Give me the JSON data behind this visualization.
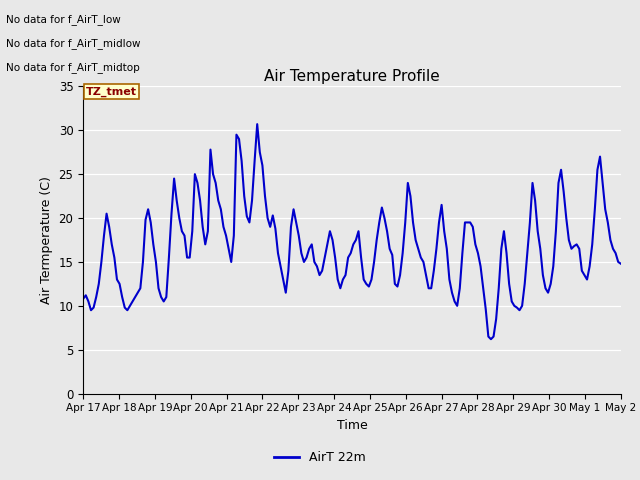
{
  "title": "Air Temperature Profile",
  "xlabel": "Time",
  "ylabel": "Air Termperature (C)",
  "line_color": "#0000cc",
  "line_width": 1.5,
  "ylim": [
    0,
    35
  ],
  "yticks": [
    0,
    5,
    10,
    15,
    20,
    25,
    30,
    35
  ],
  "background_color": "#e8e8e8",
  "plot_bg_color": "#e8e8e8",
  "legend_label": "AirT 22m",
  "annotations_text": [
    "No data for f_AirT_low",
    "No data for f_AirT_midlow",
    "No data for f_AirT_midtop"
  ],
  "tz_label": "TZ_tmet",
  "x_tick_labels": [
    "Apr 17",
    "Apr 18",
    "Apr 19",
    "Apr 20",
    "Apr 21",
    "Apr 22",
    "Apr 23",
    "Apr 24",
    "Apr 25",
    "Apr 26",
    "Apr 27",
    "Apr 28",
    "Apr 29",
    "Apr 30",
    "May 1",
    "May 2"
  ],
  "time_series": [
    10.8,
    11.2,
    10.5,
    9.5,
    9.8,
    11.0,
    12.5,
    15.0,
    18.0,
    20.5,
    19.0,
    17.0,
    15.5,
    13.0,
    12.5,
    11.0,
    9.8,
    9.5,
    10.0,
    10.5,
    11.0,
    11.5,
    12.0,
    15.0,
    19.8,
    21.0,
    19.5,
    17.0,
    15.0,
    12.0,
    11.0,
    10.5,
    11.0,
    15.5,
    20.5,
    24.5,
    22.0,
    20.0,
    18.5,
    18.0,
    15.5,
    15.5,
    18.5,
    25.0,
    24.0,
    22.0,
    19.0,
    17.0,
    18.5,
    27.8,
    25.0,
    24.0,
    22.0,
    21.0,
    19.0,
    18.0,
    16.5,
    15.0,
    18.0,
    29.5,
    29.0,
    26.5,
    22.5,
    20.2,
    19.5,
    22.0,
    26.5,
    30.7,
    27.5,
    26.0,
    22.5,
    20.0,
    19.0,
    20.3,
    18.8,
    16.0,
    14.5,
    13.0,
    11.5,
    14.0,
    19.0,
    21.0,
    19.5,
    18.0,
    16.0,
    15.0,
    15.5,
    16.5,
    17.0,
    15.0,
    14.5,
    13.5,
    14.0,
    15.5,
    17.0,
    18.5,
    17.5,
    15.5,
    13.0,
    12.0,
    13.0,
    13.5,
    15.5,
    16.0,
    17.0,
    17.5,
    18.5,
    15.5,
    13.0,
    12.5,
    12.2,
    13.0,
    15.0,
    17.5,
    19.5,
    21.2,
    20.0,
    18.5,
    16.5,
    15.8,
    12.5,
    12.2,
    13.5,
    16.0,
    19.5,
    24.0,
    22.5,
    19.5,
    17.5,
    16.5,
    15.5,
    15.0,
    13.5,
    12.0,
    12.0,
    14.0,
    16.5,
    19.5,
    21.5,
    18.5,
    16.5,
    13.0,
    11.5,
    10.5,
    10.0,
    12.0,
    16.0,
    19.5,
    19.5,
    19.5,
    19.0,
    17.0,
    16.0,
    14.5,
    12.0,
    9.6,
    6.5,
    6.2,
    6.5,
    8.5,
    12.0,
    16.5,
    18.5,
    16.0,
    12.5,
    10.5,
    10.0,
    9.8,
    9.5,
    10.0,
    12.5,
    16.0,
    19.5,
    24.0,
    22.0,
    18.5,
    16.5,
    13.5,
    12.0,
    11.5,
    12.5,
    14.5,
    18.5,
    24.0,
    25.5,
    23.0,
    20.0,
    17.5,
    16.5,
    16.8,
    17.0,
    16.5,
    14.0,
    13.5,
    13.0,
    14.5,
    17.0,
    21.0,
    25.5,
    27.0,
    24.0,
    21.0,
    19.5,
    17.5,
    16.5,
    16.0,
    15.0,
    14.8
  ]
}
